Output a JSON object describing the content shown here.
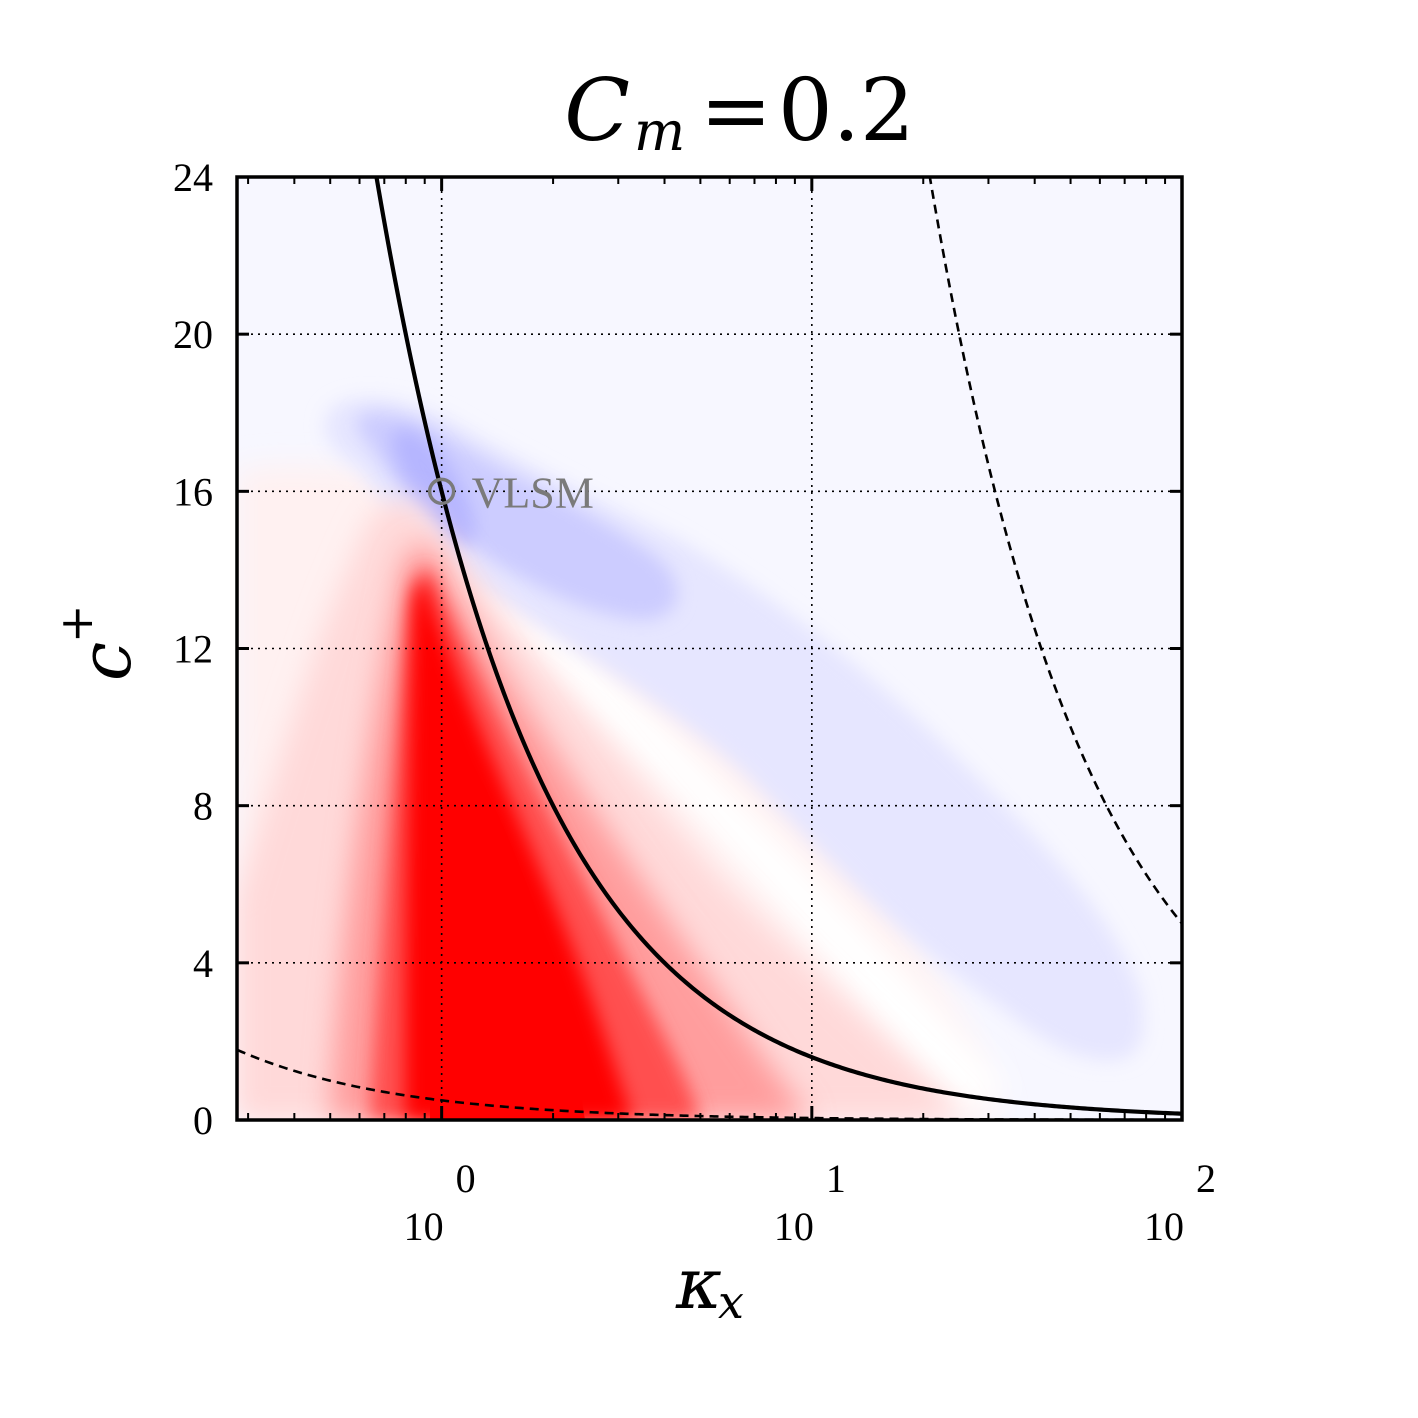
{
  "chart_data": {
    "type": "heatmap",
    "title": {
      "symbol": "C",
      "subscript": "m",
      "equals": "=",
      "value": "0.2"
    },
    "xlabel": {
      "symbol": "κ",
      "subscript": "x"
    },
    "ylabel": {
      "symbol": "c",
      "superscript": "+"
    },
    "x_scale": "log",
    "xlim": [
      0.28,
      100
    ],
    "ylim": [
      0,
      24
    ],
    "x_ticks": [
      {
        "value": 1,
        "base": "10",
        "exponent": "0"
      },
      {
        "value": 10,
        "base": "10",
        "exponent": "1"
      },
      {
        "value": 100,
        "base": "10",
        "exponent": "2"
      }
    ],
    "y_ticks": [
      {
        "value": 0,
        "label": "0"
      },
      {
        "value": 4,
        "label": "4"
      },
      {
        "value": 8,
        "label": "8"
      },
      {
        "value": 12,
        "label": "12"
      },
      {
        "value": 16,
        "label": "16"
      },
      {
        "value": 20,
        "label": "20"
      },
      {
        "value": 24,
        "label": "24"
      }
    ],
    "grid": true,
    "colormap": {
      "positive": "#ff0000",
      "zero": "#ffffff",
      "negative": "#9a9aff",
      "background": "#f6f6ff"
    },
    "curves": [
      {
        "style": "solid",
        "relation": "c+ = 16 / kx"
      },
      {
        "style": "dashed",
        "relation": "c+ = 0.5 / kx"
      },
      {
        "style": "dashed",
        "relation": "c+ = 500 / kx"
      }
    ],
    "annotations": [
      {
        "text": "VLSM",
        "x": 1.0,
        "y": 16.0,
        "marker": "circle",
        "color": "#7a7a7a"
      }
    ]
  }
}
